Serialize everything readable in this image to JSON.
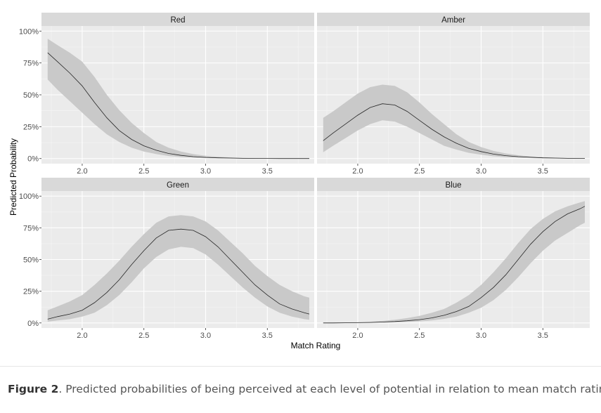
{
  "chart_data": {
    "type": "line",
    "xlabel": "Match Rating",
    "ylabel": "Predicted Probability",
    "xlim": [
      1.67,
      3.88
    ],
    "ylim": [
      -0.04,
      1.04
    ],
    "x_ticks": [
      2.0,
      2.5,
      3.0,
      3.5
    ],
    "x_tick_labels": [
      "2.0",
      "2.5",
      "3.0",
      "3.5"
    ],
    "y_ticks": [
      0,
      0.25,
      0.5,
      0.75,
      1.0
    ],
    "y_tick_labels": [
      "0%",
      "25%",
      "50%",
      "75%",
      "100%"
    ],
    "grid": true,
    "facets": [
      "Red",
      "Amber",
      "Green",
      "Blue"
    ],
    "x": [
      1.72,
      1.8,
      1.9,
      2.0,
      2.1,
      2.2,
      2.3,
      2.4,
      2.5,
      2.6,
      2.7,
      2.8,
      2.9,
      3.0,
      3.1,
      3.2,
      3.3,
      3.4,
      3.5,
      3.6,
      3.7,
      3.8,
      3.84
    ],
    "series": [
      {
        "name": "Red",
        "values": [
          0.83,
          0.76,
          0.67,
          0.57,
          0.44,
          0.32,
          0.22,
          0.15,
          0.1,
          0.065,
          0.04,
          0.025,
          0.015,
          0.009,
          0.006,
          0.004,
          0.002,
          0.001,
          0.001,
          0,
          0,
          0,
          0
        ],
        "lower": [
          0.62,
          0.54,
          0.45,
          0.36,
          0.27,
          0.19,
          0.13,
          0.085,
          0.055,
          0.035,
          0.02,
          0.012,
          0.007,
          0.004,
          0.002,
          0.001,
          0,
          0,
          0,
          0,
          0,
          0,
          0
        ],
        "upper": [
          0.94,
          0.89,
          0.83,
          0.76,
          0.64,
          0.5,
          0.38,
          0.28,
          0.2,
          0.13,
          0.085,
          0.055,
          0.035,
          0.022,
          0.014,
          0.009,
          0.005,
          0.003,
          0.002,
          0.001,
          0.001,
          0,
          0
        ]
      },
      {
        "name": "Amber",
        "values": [
          0.14,
          0.2,
          0.27,
          0.34,
          0.4,
          0.43,
          0.42,
          0.37,
          0.3,
          0.23,
          0.17,
          0.12,
          0.08,
          0.055,
          0.035,
          0.023,
          0.015,
          0.01,
          0.006,
          0.004,
          0.002,
          0.001,
          0.001
        ],
        "lower": [
          0.05,
          0.1,
          0.16,
          0.22,
          0.27,
          0.3,
          0.29,
          0.25,
          0.2,
          0.15,
          0.1,
          0.07,
          0.045,
          0.03,
          0.018,
          0.011,
          0.007,
          0.004,
          0.002,
          0.001,
          0,
          0,
          0
        ],
        "upper": [
          0.32,
          0.37,
          0.44,
          0.51,
          0.56,
          0.58,
          0.57,
          0.52,
          0.44,
          0.35,
          0.27,
          0.19,
          0.13,
          0.09,
          0.06,
          0.04,
          0.026,
          0.017,
          0.011,
          0.007,
          0.004,
          0.002,
          0.002
        ]
      },
      {
        "name": "Green",
        "values": [
          0.03,
          0.05,
          0.07,
          0.1,
          0.16,
          0.24,
          0.34,
          0.46,
          0.57,
          0.67,
          0.73,
          0.74,
          0.73,
          0.68,
          0.6,
          0.5,
          0.4,
          0.3,
          0.22,
          0.15,
          0.11,
          0.08,
          0.07
        ],
        "lower": [
          0.01,
          0.02,
          0.03,
          0.05,
          0.08,
          0.14,
          0.22,
          0.32,
          0.43,
          0.52,
          0.58,
          0.6,
          0.59,
          0.54,
          0.46,
          0.37,
          0.28,
          0.2,
          0.13,
          0.08,
          0.05,
          0.03,
          0.025
        ],
        "upper": [
          0.1,
          0.13,
          0.17,
          0.22,
          0.3,
          0.39,
          0.49,
          0.6,
          0.7,
          0.79,
          0.84,
          0.85,
          0.84,
          0.8,
          0.73,
          0.64,
          0.55,
          0.45,
          0.37,
          0.3,
          0.25,
          0.21,
          0.2
        ]
      },
      {
        "name": "Blue",
        "values": [
          0,
          0,
          0.001,
          0.002,
          0.004,
          0.007,
          0.011,
          0.017,
          0.026,
          0.04,
          0.06,
          0.09,
          0.13,
          0.2,
          0.28,
          0.38,
          0.5,
          0.62,
          0.72,
          0.8,
          0.86,
          0.9,
          0.92
        ],
        "lower": [
          0,
          0,
          0,
          0.001,
          0.002,
          0.003,
          0.005,
          0.008,
          0.012,
          0.02,
          0.032,
          0.05,
          0.08,
          0.12,
          0.18,
          0.26,
          0.36,
          0.47,
          0.57,
          0.65,
          0.71,
          0.77,
          0.79
        ],
        "upper": [
          0.002,
          0.003,
          0.004,
          0.006,
          0.01,
          0.016,
          0.025,
          0.038,
          0.056,
          0.08,
          0.11,
          0.16,
          0.22,
          0.3,
          0.4,
          0.51,
          0.63,
          0.74,
          0.82,
          0.88,
          0.92,
          0.95,
          0.96
        ]
      }
    ]
  },
  "caption": {
    "label": "Figure 2",
    "text": ". Predicted probabilities of being perceived at each level of potential in relation to mean match rating."
  }
}
